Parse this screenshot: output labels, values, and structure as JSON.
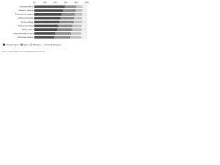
{
  "chart_data": {
    "type": "stacked_bar_horizontal",
    "categories": [
      "Doctoral (PhD)",
      "Master's degree",
      "Professional degree",
      "College graduate",
      "Some college",
      "High school grad",
      "Trade school",
      "Less than high school",
      "Associate degree"
    ],
    "series": [
      {
        "name": "Strongly Agree",
        "color": "#4d4d4d",
        "values": [
          58,
          55,
          52,
          50,
          48,
          45,
          44,
          40,
          38
        ]
      },
      {
        "name": "Agree",
        "color": "#8c8c8c",
        "values": [
          22,
          24,
          25,
          26,
          27,
          28,
          28,
          30,
          31
        ]
      },
      {
        "name": "Disagree",
        "color": "#c4c4c4",
        "values": [
          12,
          13,
          14,
          15,
          16,
          17,
          18,
          19,
          20
        ]
      },
      {
        "name": "Strongly Disagree",
        "color": "#f0f0f0",
        "values": [
          8,
          8,
          9,
          9,
          9,
          10,
          10,
          11,
          11
        ]
      }
    ],
    "xlim": [
      0,
      100
    ],
    "xticks": [
      {
        "value": 0,
        "label": "0%"
      },
      {
        "value": 20,
        "label": "20%"
      },
      {
        "value": 40,
        "label": "40%"
      },
      {
        "value": 60,
        "label": "60%"
      },
      {
        "value": 80,
        "label": "80%"
      },
      {
        "value": 100,
        "label": "100%"
      }
    ],
    "grid": true,
    "note": "Source: Survey of adults, percent responding by education level"
  }
}
